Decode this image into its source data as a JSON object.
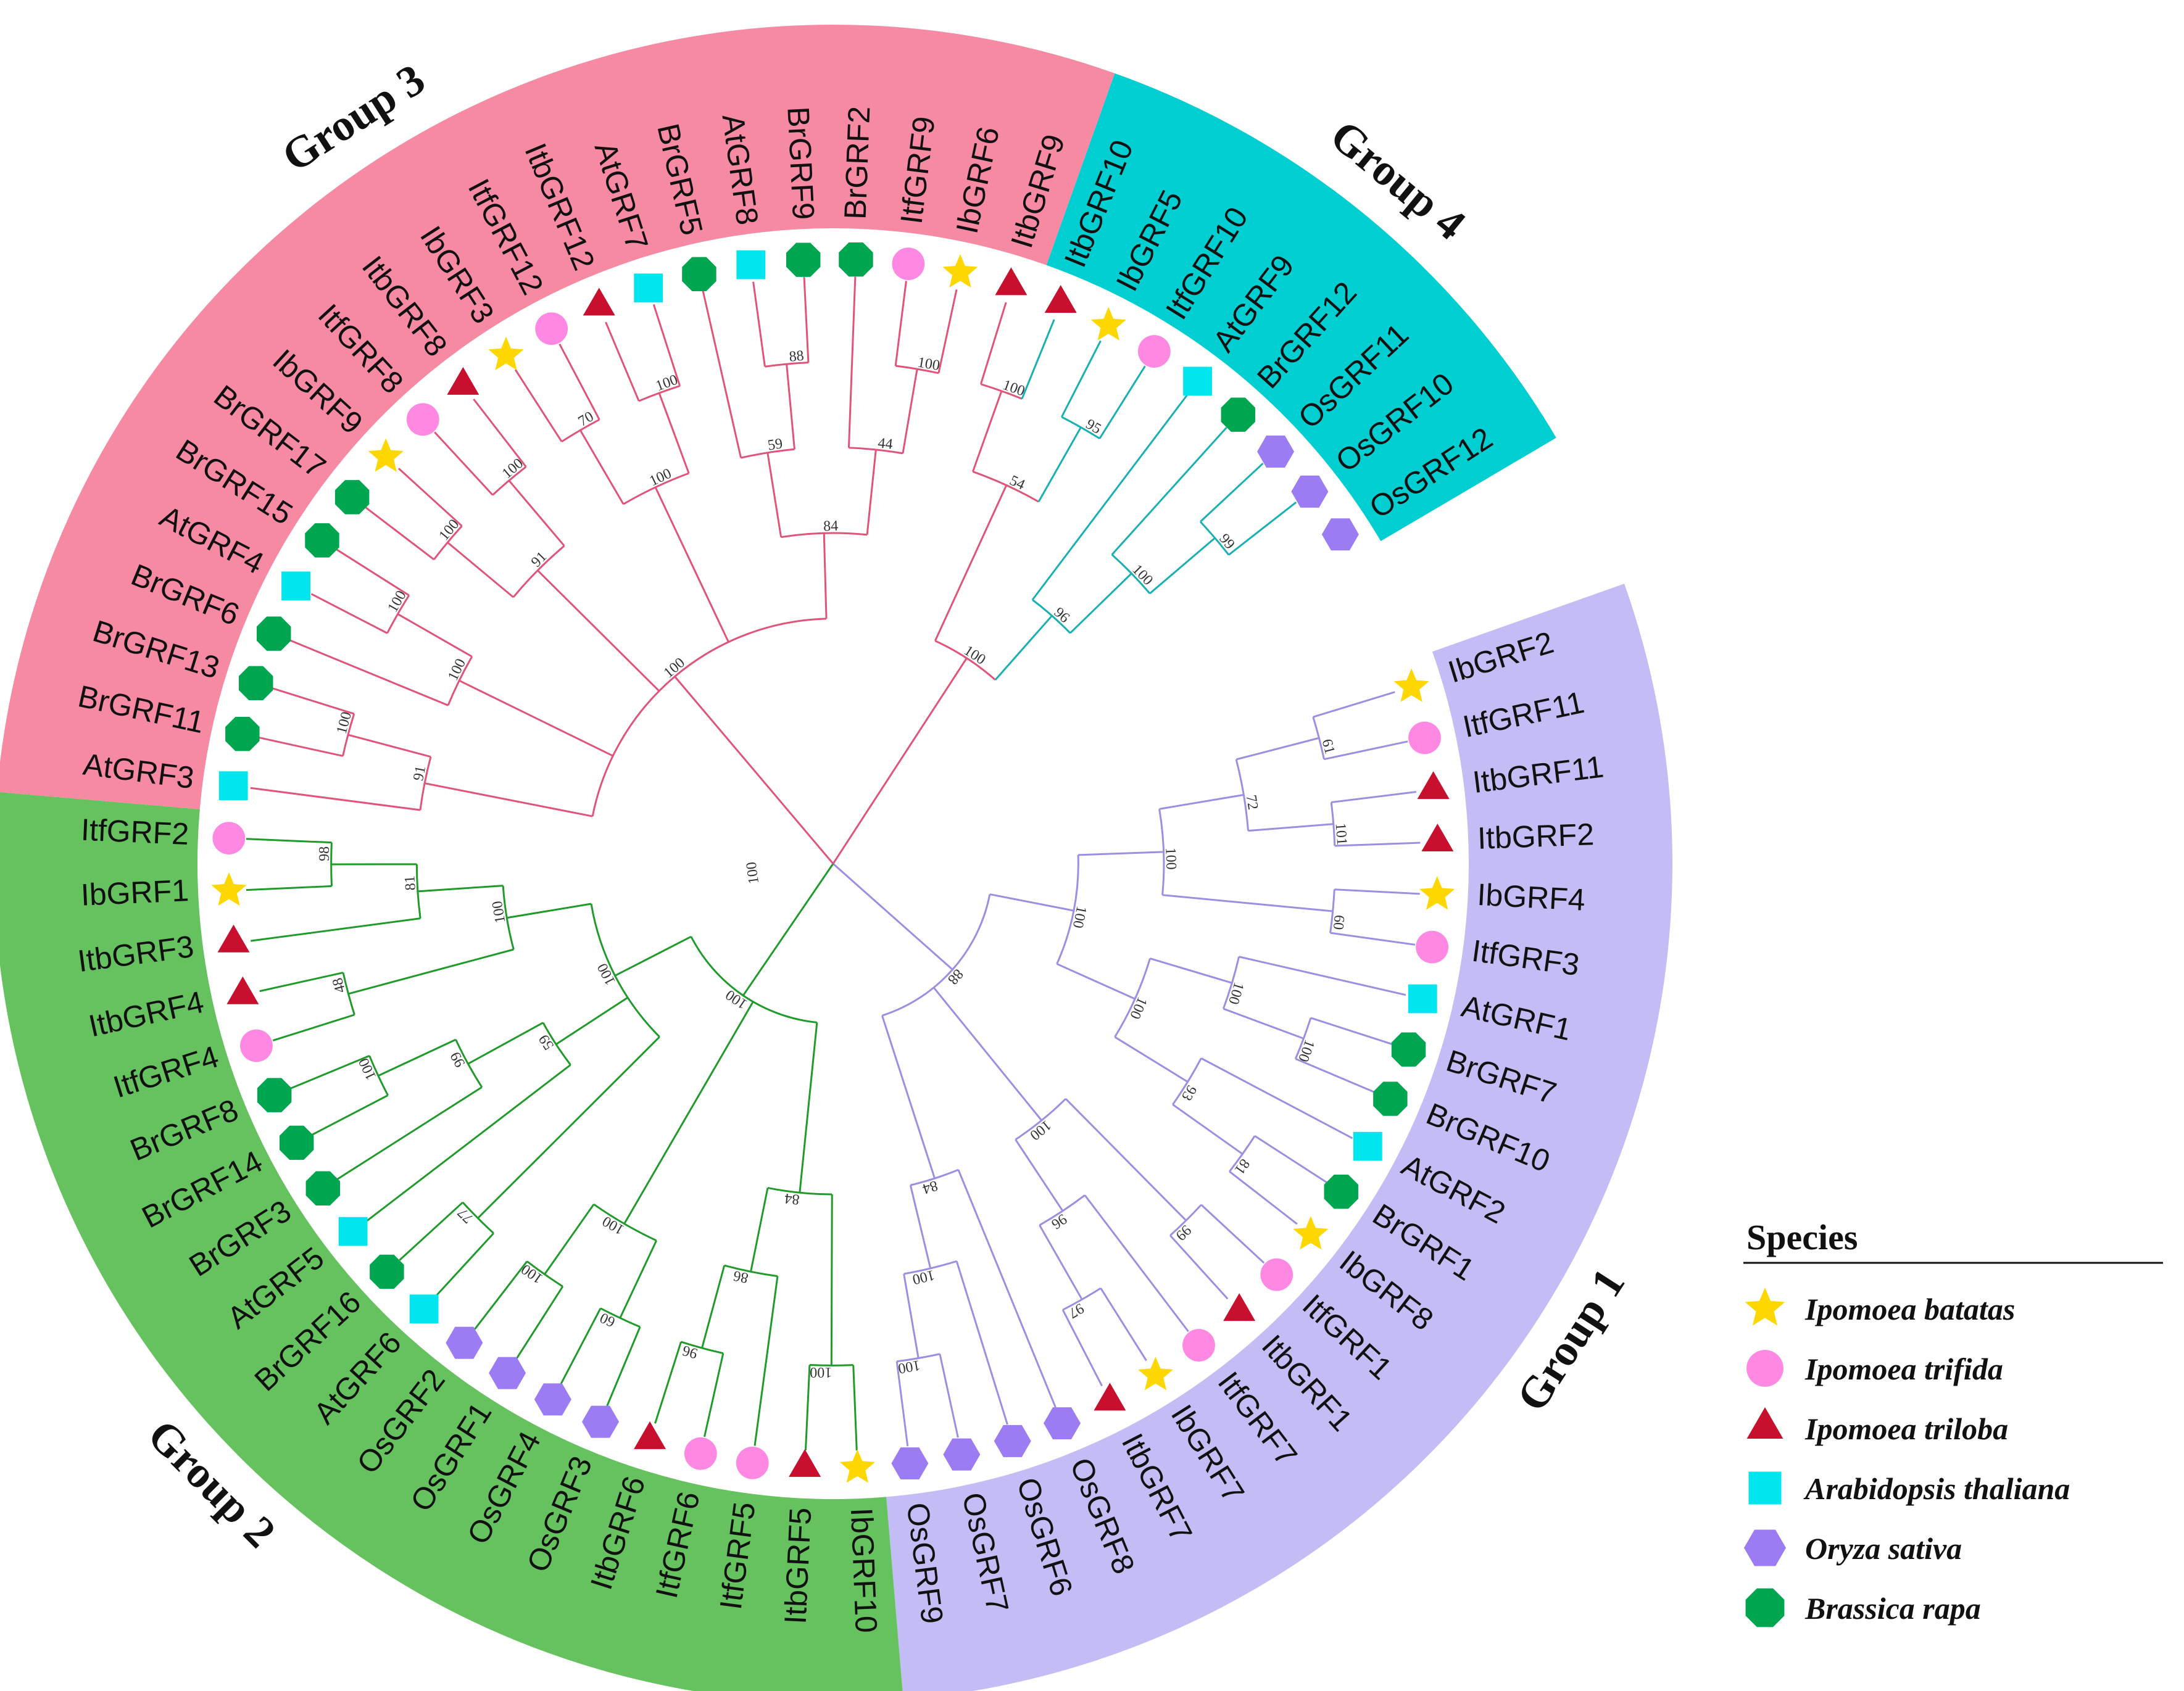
{
  "groups": [
    {
      "id": "g1",
      "label": "Group 1",
      "fill": "#c4bdf5",
      "line": "#9c8ee0"
    },
    {
      "id": "g2",
      "label": "Group 2",
      "fill": "#66c25e",
      "line": "#1f9a2b"
    },
    {
      "id": "g3",
      "label": "Group 3",
      "fill": "#f78aa3",
      "line": "#e0547a"
    },
    {
      "id": "g4",
      "label": "Group 4",
      "fill": "#00ced1",
      "line": "#19b0b3"
    }
  ],
  "species": [
    {
      "key": "Ib",
      "name": "Ipomoea batatas",
      "shape": "star",
      "color": "#ffd700"
    },
    {
      "key": "Itf",
      "name": "Ipomoea trifida",
      "shape": "circle",
      "color": "#ff88e3"
    },
    {
      "key": "Itb",
      "name": "Ipomoea triloba",
      "shape": "triangle",
      "color": "#c8102e"
    },
    {
      "key": "At",
      "name": "Arabidopsis thaliana",
      "shape": "square",
      "color": "#00e5ee"
    },
    {
      "key": "Os",
      "name": "Oryza sativa",
      "shape": "hexagon",
      "color": "#9b7cf2"
    },
    {
      "key": "Br",
      "name": "Brassica rapa",
      "shape": "octagon",
      "color": "#00a550"
    }
  ],
  "legend": {
    "title": "Species"
  },
  "leaves": [
    {
      "name": "IbGRF2",
      "species": "Ib",
      "group": "g1"
    },
    {
      "name": "ItfGRF11",
      "species": "Itf",
      "group": "g1"
    },
    {
      "name": "ItbGRF11",
      "species": "Itb",
      "group": "g1"
    },
    {
      "name": "ItbGRF2",
      "species": "Itb",
      "group": "g1"
    },
    {
      "name": "IbGRF4",
      "species": "Ib",
      "group": "g1"
    },
    {
      "name": "ItfGRF3",
      "species": "Itf",
      "group": "g1"
    },
    {
      "name": "AtGRF1",
      "species": "At",
      "group": "g1"
    },
    {
      "name": "BrGRF7",
      "species": "Br",
      "group": "g1"
    },
    {
      "name": "BrGRF10",
      "species": "Br",
      "group": "g1"
    },
    {
      "name": "AtGRF2",
      "species": "At",
      "group": "g1"
    },
    {
      "name": "BrGRF1",
      "species": "Br",
      "group": "g1"
    },
    {
      "name": "IbGRF8",
      "species": "Ib",
      "group": "g1"
    },
    {
      "name": "ItfGRF1",
      "species": "Itf",
      "group": "g1"
    },
    {
      "name": "ItbGRF1",
      "species": "Itb",
      "group": "g1"
    },
    {
      "name": "ItfGRF7",
      "species": "Itf",
      "group": "g1"
    },
    {
      "name": "IbGRF7",
      "species": "Ib",
      "group": "g1"
    },
    {
      "name": "ItbGRF7",
      "species": "Itb",
      "group": "g1"
    },
    {
      "name": "OsGRF8",
      "species": "Os",
      "group": "g1"
    },
    {
      "name": "OsGRF6",
      "species": "Os",
      "group": "g1"
    },
    {
      "name": "OsGRF7",
      "species": "Os",
      "group": "g1"
    },
    {
      "name": "OsGRF9",
      "species": "Os",
      "group": "g1"
    },
    {
      "name": "IbGRF10",
      "species": "Ib",
      "group": "g2"
    },
    {
      "name": "ItbGRF5",
      "species": "Itb",
      "group": "g2"
    },
    {
      "name": "ItfGRF5",
      "species": "Itf",
      "group": "g2"
    },
    {
      "name": "ItfGRF6",
      "species": "Itf",
      "group": "g2"
    },
    {
      "name": "ItbGRF6",
      "species": "Itb",
      "group": "g2"
    },
    {
      "name": "OsGRF3",
      "species": "Os",
      "group": "g2"
    },
    {
      "name": "OsGRF4",
      "species": "Os",
      "group": "g2"
    },
    {
      "name": "OsGRF1",
      "species": "Os",
      "group": "g2"
    },
    {
      "name": "OsGRF2",
      "species": "Os",
      "group": "g2"
    },
    {
      "name": "AtGRF6",
      "species": "At",
      "group": "g2"
    },
    {
      "name": "BrGRF16",
      "species": "Br",
      "group": "g2"
    },
    {
      "name": "AtGRF5",
      "species": "At",
      "group": "g2"
    },
    {
      "name": "BrGRF3",
      "species": "Br",
      "group": "g2"
    },
    {
      "name": "BrGRF14",
      "species": "Br",
      "group": "g2"
    },
    {
      "name": "BrGRF8",
      "species": "Br",
      "group": "g2"
    },
    {
      "name": "ItfGRF4",
      "species": "Itf",
      "group": "g2"
    },
    {
      "name": "ItbGRF4",
      "species": "Itb",
      "group": "g2"
    },
    {
      "name": "ItbGRF3",
      "species": "Itb",
      "group": "g2"
    },
    {
      "name": "IbGRF1",
      "species": "Ib",
      "group": "g2"
    },
    {
      "name": "ItfGRF2",
      "species": "Itf",
      "group": "g2"
    },
    {
      "name": "AtGRF3",
      "species": "At",
      "group": "g3"
    },
    {
      "name": "BrGRF11",
      "species": "Br",
      "group": "g3"
    },
    {
      "name": "BrGRF13",
      "species": "Br",
      "group": "g3"
    },
    {
      "name": "BrGRF6",
      "species": "Br",
      "group": "g3"
    },
    {
      "name": "AtGRF4",
      "species": "At",
      "group": "g3"
    },
    {
      "name": "BrGRF15",
      "species": "Br",
      "group": "g3"
    },
    {
      "name": "BrGRF17",
      "species": "Br",
      "group": "g3"
    },
    {
      "name": "IbGRF9",
      "species": "Ib",
      "group": "g3"
    },
    {
      "name": "ItfGRF8",
      "species": "Itf",
      "group": "g3"
    },
    {
      "name": "ItbGRF8",
      "species": "Itb",
      "group": "g3"
    },
    {
      "name": "IbGRF3",
      "species": "Ib",
      "group": "g3"
    },
    {
      "name": "ItfGRF12",
      "species": "Itf",
      "group": "g3"
    },
    {
      "name": "ItbGRF12",
      "species": "Itb",
      "group": "g3"
    },
    {
      "name": "AtGRF7",
      "species": "At",
      "group": "g3"
    },
    {
      "name": "BrGRF5",
      "species": "Br",
      "group": "g3"
    },
    {
      "name": "AtGRF8",
      "species": "At",
      "group": "g3"
    },
    {
      "name": "BrGRF9",
      "species": "Br",
      "group": "g3"
    },
    {
      "name": "BrGRF2",
      "species": "Br",
      "group": "g3"
    },
    {
      "name": "ItfGRF9",
      "species": "Itf",
      "group": "g3"
    },
    {
      "name": "IbGRF6",
      "species": "Ib",
      "group": "g3"
    },
    {
      "name": "ItbGRF9",
      "species": "Itb",
      "group": "g3"
    },
    {
      "name": "ItbGRF10",
      "species": "Itb",
      "group": "g4"
    },
    {
      "name": "IbGRF5",
      "species": "Ib",
      "group": "g4"
    },
    {
      "name": "ItfGRF10",
      "species": "Itf",
      "group": "g4"
    },
    {
      "name": "AtGRF9",
      "species": "At",
      "group": "g4"
    },
    {
      "name": "BrGRF12",
      "species": "Br",
      "group": "g4"
    },
    {
      "name": "OsGRF11",
      "species": "Os",
      "group": "g4"
    },
    {
      "name": "OsGRF10",
      "species": "Os",
      "group": "g4"
    },
    {
      "name": "OsGRF12",
      "species": "Os",
      "group": "g4"
    }
  ],
  "bootstrap": [
    "61",
    "101",
    "72",
    "60",
    "100",
    "100",
    "100",
    "81",
    "93",
    "100",
    "100",
    "99",
    "97",
    "96",
    "100",
    "100",
    "100",
    "84",
    "88",
    "100",
    "96",
    "86",
    "84",
    "60",
    "100",
    "100",
    "77",
    "100",
    "99",
    "59",
    "48",
    "98",
    "81",
    "100",
    "100",
    "100",
    "100",
    "91",
    "100",
    "100",
    "100",
    "100",
    "91",
    "70",
    "100",
    "100",
    "88",
    "59",
    "100",
    "44",
    "84",
    "100",
    "100",
    "95",
    "54",
    "99",
    "100",
    "96",
    "100",
    "100",
    "96",
    "99",
    "100",
    "100"
  ]
}
